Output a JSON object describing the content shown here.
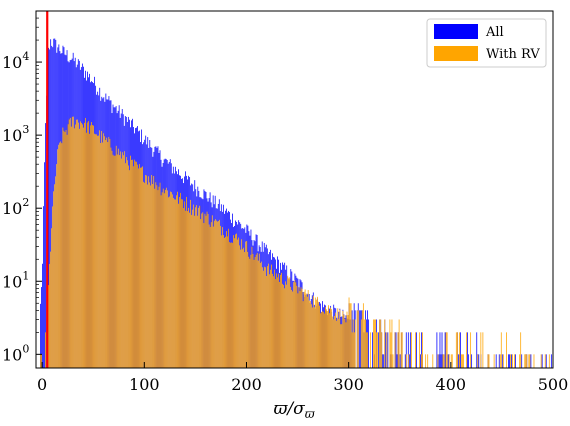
{
  "chart_data": {
    "type": "histogram",
    "xlabel": "ϖ/σ_ϖ",
    "ylabel": "",
    "xlim": [
      -6,
      500
    ],
    "ylim": [
      0.65,
      50000
    ],
    "yscale": "log",
    "grid": false,
    "legend_position": "top-right",
    "x_ticks": [
      0,
      100,
      200,
      300,
      400,
      500
    ],
    "x_tick_labels": [
      "0",
      "100",
      "200",
      "300",
      "400",
      "500"
    ],
    "y_ticks": [
      1,
      10,
      100,
      1000,
      10000
    ],
    "y_tick_labels": [
      {
        "base": "10",
        "exp": "0"
      },
      {
        "base": "10",
        "exp": "1"
      },
      {
        "base": "10",
        "exp": "2"
      },
      {
        "base": "10",
        "exp": "3"
      },
      {
        "base": "10",
        "exp": "4"
      }
    ],
    "reference_line": {
      "x": 5,
      "color": "#ff0000"
    },
    "series": [
      {
        "name": "All",
        "color": "#0000ff",
        "profile_x": [
          -5,
          0,
          3,
          6,
          8,
          12,
          20,
          30,
          40,
          50,
          60,
          80,
          100,
          120,
          150,
          180,
          200,
          220,
          250,
          270,
          300,
          330,
          360,
          400,
          450,
          500
        ],
        "profile_y": [
          0.7,
          10,
          800,
          12000,
          20000,
          18000,
          14000,
          11000,
          8000,
          5500,
          3500,
          1800,
          900,
          450,
          200,
          90,
          50,
          25,
          10,
          5,
          3,
          1.8,
          1.2,
          1,
          0.8,
          0.7
        ]
      },
      {
        "name": "With RV",
        "color": "#ffa500",
        "profile_x": [
          -5,
          2,
          5,
          10,
          15,
          20,
          30,
          40,
          50,
          60,
          80,
          100,
          120,
          150,
          180,
          200,
          220,
          250,
          270,
          300,
          330,
          360,
          400,
          450,
          500
        ],
        "profile_y": [
          0.7,
          0.9,
          3,
          80,
          500,
          1000,
          1600,
          1500,
          1200,
          900,
          500,
          300,
          180,
          100,
          50,
          30,
          15,
          8,
          5,
          3,
          2,
          1.5,
          1.2,
          1,
          0.8
        ]
      }
    ]
  }
}
